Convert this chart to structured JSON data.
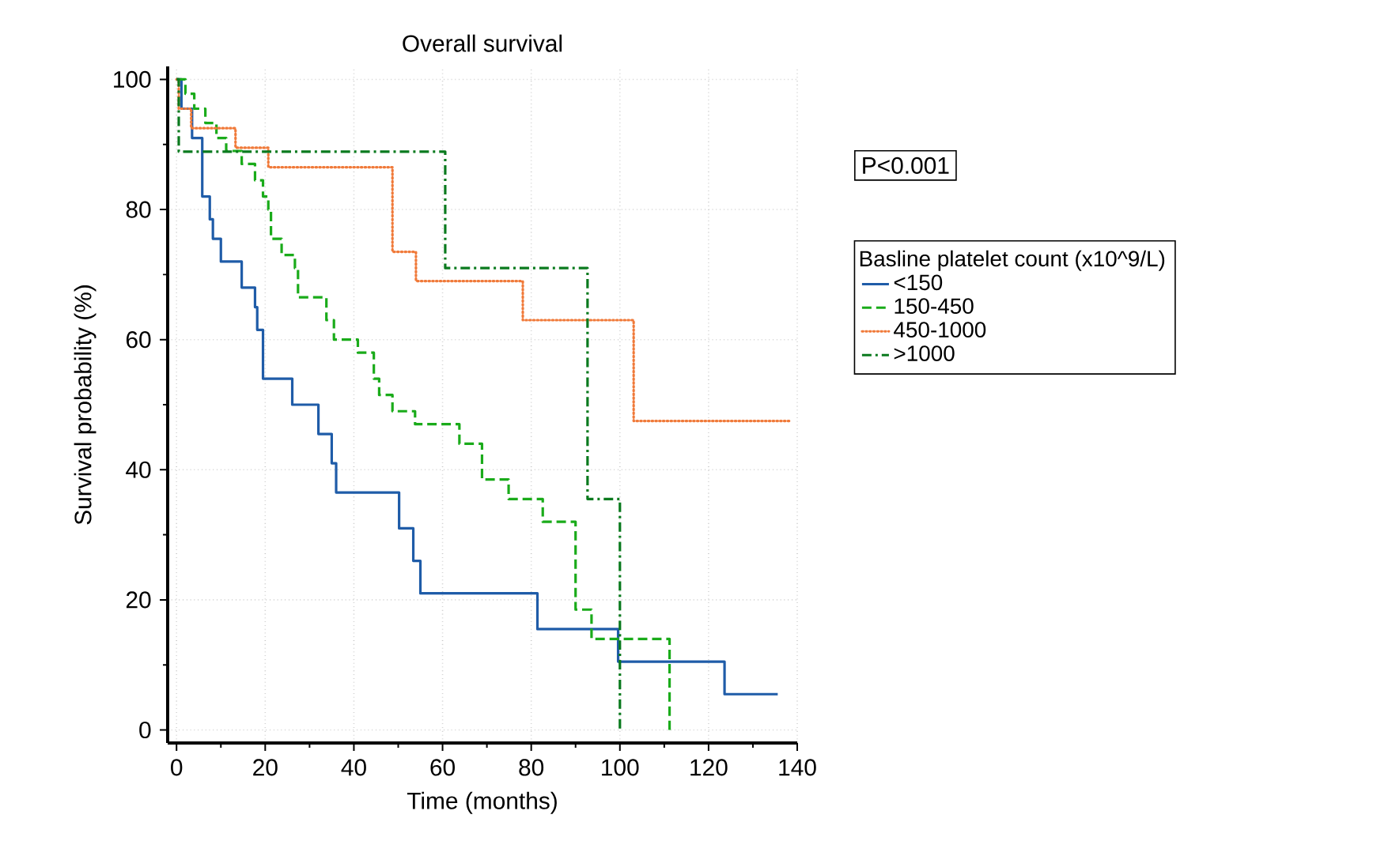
{
  "chart_data": {
    "type": "step",
    "title": "Overall survival",
    "xlabel": "Time (months)",
    "ylabel": "Survival probability (%)",
    "legend_title": "Basline platelet count (x10^9/L)",
    "annotations": [
      "P<0.001"
    ],
    "xlim": [
      -2,
      140
    ],
    "ylim": [
      -2,
      102
    ],
    "xticks": [
      0,
      20,
      40,
      60,
      80,
      100,
      120,
      140
    ],
    "yticks": [
      0,
      20,
      40,
      60,
      80,
      100
    ],
    "grid": true,
    "legend": "right",
    "marker": "none",
    "series": [
      {
        "name": "<150",
        "color": "#1f5ca8",
        "line_style": "solid",
        "x": [
          0,
          1.1,
          3.5,
          5.8,
          7.5,
          8.2,
          10,
          14.7,
          17.7,
          18.2,
          19.5,
          26.1,
          32,
          35,
          36,
          50.2,
          53.4,
          55,
          81.4,
          99.6,
          123.6,
          135.6
        ],
        "values": [
          100,
          95.5,
          91,
          82,
          78.5,
          75.5,
          72,
          68,
          65,
          61.5,
          54,
          50,
          45.5,
          41,
          36.5,
          31,
          26,
          21,
          15.5,
          10.5,
          5.5,
          5.5
        ]
      },
      {
        "name": "150-450",
        "color": "#1aab1a",
        "line_style": "dashed",
        "x": [
          0,
          2,
          4,
          6.5,
          9,
          11.2,
          14.7,
          17.7,
          19.5,
          20.7,
          21.3,
          23.7,
          26.7,
          27.4,
          33.8,
          35.5,
          40.9,
          44.5,
          45.7,
          48.7,
          53.8,
          63.8,
          68.9,
          74.9,
          82.6,
          90,
          93.6,
          111.2
        ],
        "values": [
          100,
          97.8,
          95.5,
          93.3,
          91,
          89,
          87,
          84.5,
          82,
          80,
          75.5,
          73,
          71,
          66.5,
          63,
          60,
          58,
          54,
          51.5,
          49,
          47,
          44,
          38.5,
          35.5,
          32,
          18.5,
          14,
          0
        ]
      },
      {
        "name": "450-1000",
        "color": "#f07a3a",
        "line_style": "dotted",
        "x": [
          0,
          0.5,
          3.3,
          13.3,
          20.7,
          48.7,
          54,
          78.1,
          103.1,
          138.5
        ],
        "values": [
          100,
          95.5,
          92.5,
          89.5,
          86.5,
          73.5,
          69,
          63,
          47.5,
          47.5
        ]
      },
      {
        "name": ">1000",
        "color": "#0a7a1e",
        "line_style": "dashdot",
        "x": [
          0,
          0.5,
          60.6,
          92.7,
          100
        ],
        "values": [
          100,
          88.9,
          71,
          35.5,
          0
        ]
      }
    ]
  }
}
